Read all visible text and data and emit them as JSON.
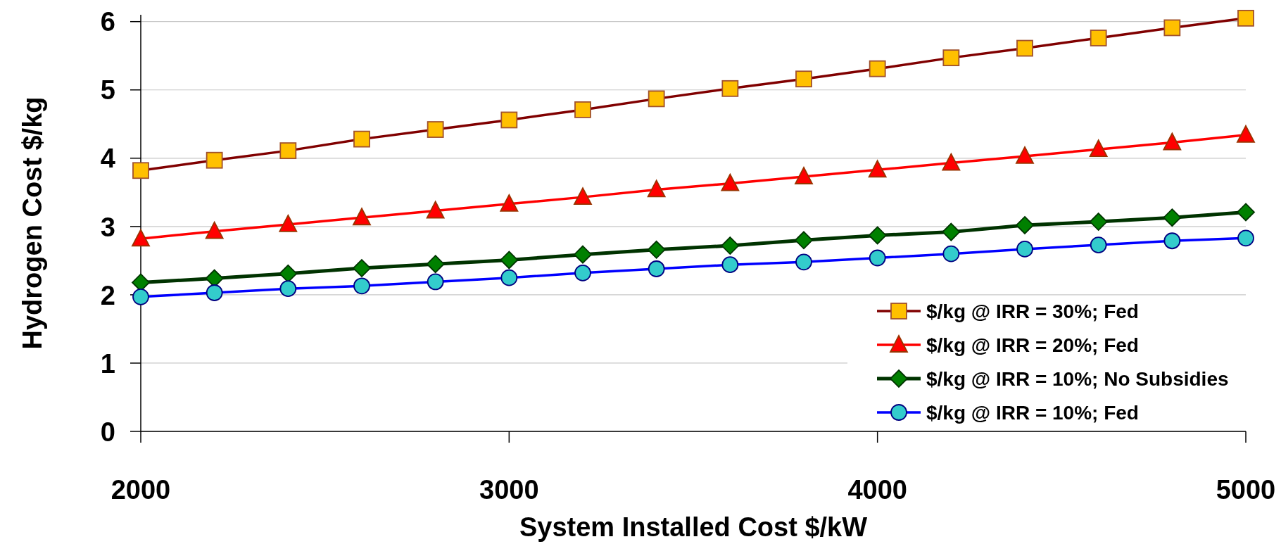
{
  "chart_data": {
    "type": "line",
    "xlabel": "System Installed Cost $/kW",
    "ylabel": "Hydrogen Cost $/kg",
    "x": [
      2000,
      2200,
      2400,
      2600,
      2800,
      3000,
      3200,
      3400,
      3600,
      3800,
      4000,
      4200,
      4400,
      4600,
      4800,
      5000
    ],
    "xlim": [
      2000,
      5000
    ],
    "xticks": [
      2000,
      3000,
      4000,
      5000
    ],
    "ylim": [
      0,
      6.1
    ],
    "yticks": [
      0,
      1,
      2,
      3,
      4,
      5,
      6
    ],
    "grid": "y",
    "legend": "bottom right",
    "series": [
      {
        "name": "$/kg @ IRR = 30%; Fed",
        "color": "#800000",
        "marker": "square",
        "colors": [
          "#ffc000",
          "#ffc000",
          "#ffc000",
          "#ffc000",
          "#ffc000",
          "#ffc000",
          "#ffc000",
          "#ffc000",
          "#ffc000",
          "#ffc000",
          "#ffc000",
          "#ffc000",
          "#ffc000",
          "#ffc000",
          "#ffc000",
          "#ffc000"
        ],
        "values": [
          3.82,
          3.97,
          4.11,
          4.28,
          4.42,
          4.56,
          4.71,
          4.87,
          5.02,
          5.16,
          5.31,
          5.47,
          5.61,
          5.76,
          5.91,
          6.05
        ]
      },
      {
        "name": "$/kg @ IRR = 20%; Fed",
        "color": "#ff0000",
        "marker": "triangle",
        "colors": [
          "#ff0000",
          "#ff0000",
          "#ff0000",
          "#ff0000",
          "#ff0000",
          "#ff0000",
          "#ff0000",
          "#ff0000",
          "#ff0000",
          "#ff0000",
          "#ff0000",
          "#ff0000",
          "#ff0000",
          "#ff0000",
          "#ff0000",
          "#ff0000"
        ],
        "values": [
          2.82,
          2.93,
          3.03,
          3.13,
          3.23,
          3.33,
          3.43,
          3.54,
          3.63,
          3.73,
          3.83,
          3.93,
          4.03,
          4.13,
          4.23,
          4.34
        ]
      },
      {
        "name": "$/kg @ IRR = 10%; No Subsidies",
        "color": "#003300",
        "marker": "diamond",
        "colors": [
          "#008000",
          "#008000",
          "#008000",
          "#008000",
          "#008000",
          "#008000",
          "#008000",
          "#008000",
          "#008000",
          "#008000",
          "#008000",
          "#008000",
          "#008000",
          "#008000",
          "#008000",
          "#008000"
        ],
        "values": [
          2.18,
          2.24,
          2.31,
          2.39,
          2.45,
          2.51,
          2.59,
          2.66,
          2.72,
          2.8,
          2.87,
          2.92,
          3.02,
          3.07,
          3.13,
          3.21
        ]
      },
      {
        "name": "$/kg @ IRR = 10%; Fed",
        "color": "#0000ff",
        "marker": "circle",
        "colors": [
          "#33cccc",
          "#33cccc",
          "#33cccc",
          "#33cccc",
          "#33cccc",
          "#33cccc",
          "#33cccc",
          "#33cccc",
          "#33cccc",
          "#33cccc",
          "#33cccc",
          "#33cccc",
          "#33cccc",
          "#33cccc",
          "#33cccc",
          "#33cccc"
        ],
        "values": [
          1.97,
          2.03,
          2.09,
          2.13,
          2.19,
          2.25,
          2.32,
          2.38,
          2.44,
          2.48,
          2.54,
          2.6,
          2.67,
          2.73,
          2.79,
          2.83
        ]
      }
    ]
  }
}
